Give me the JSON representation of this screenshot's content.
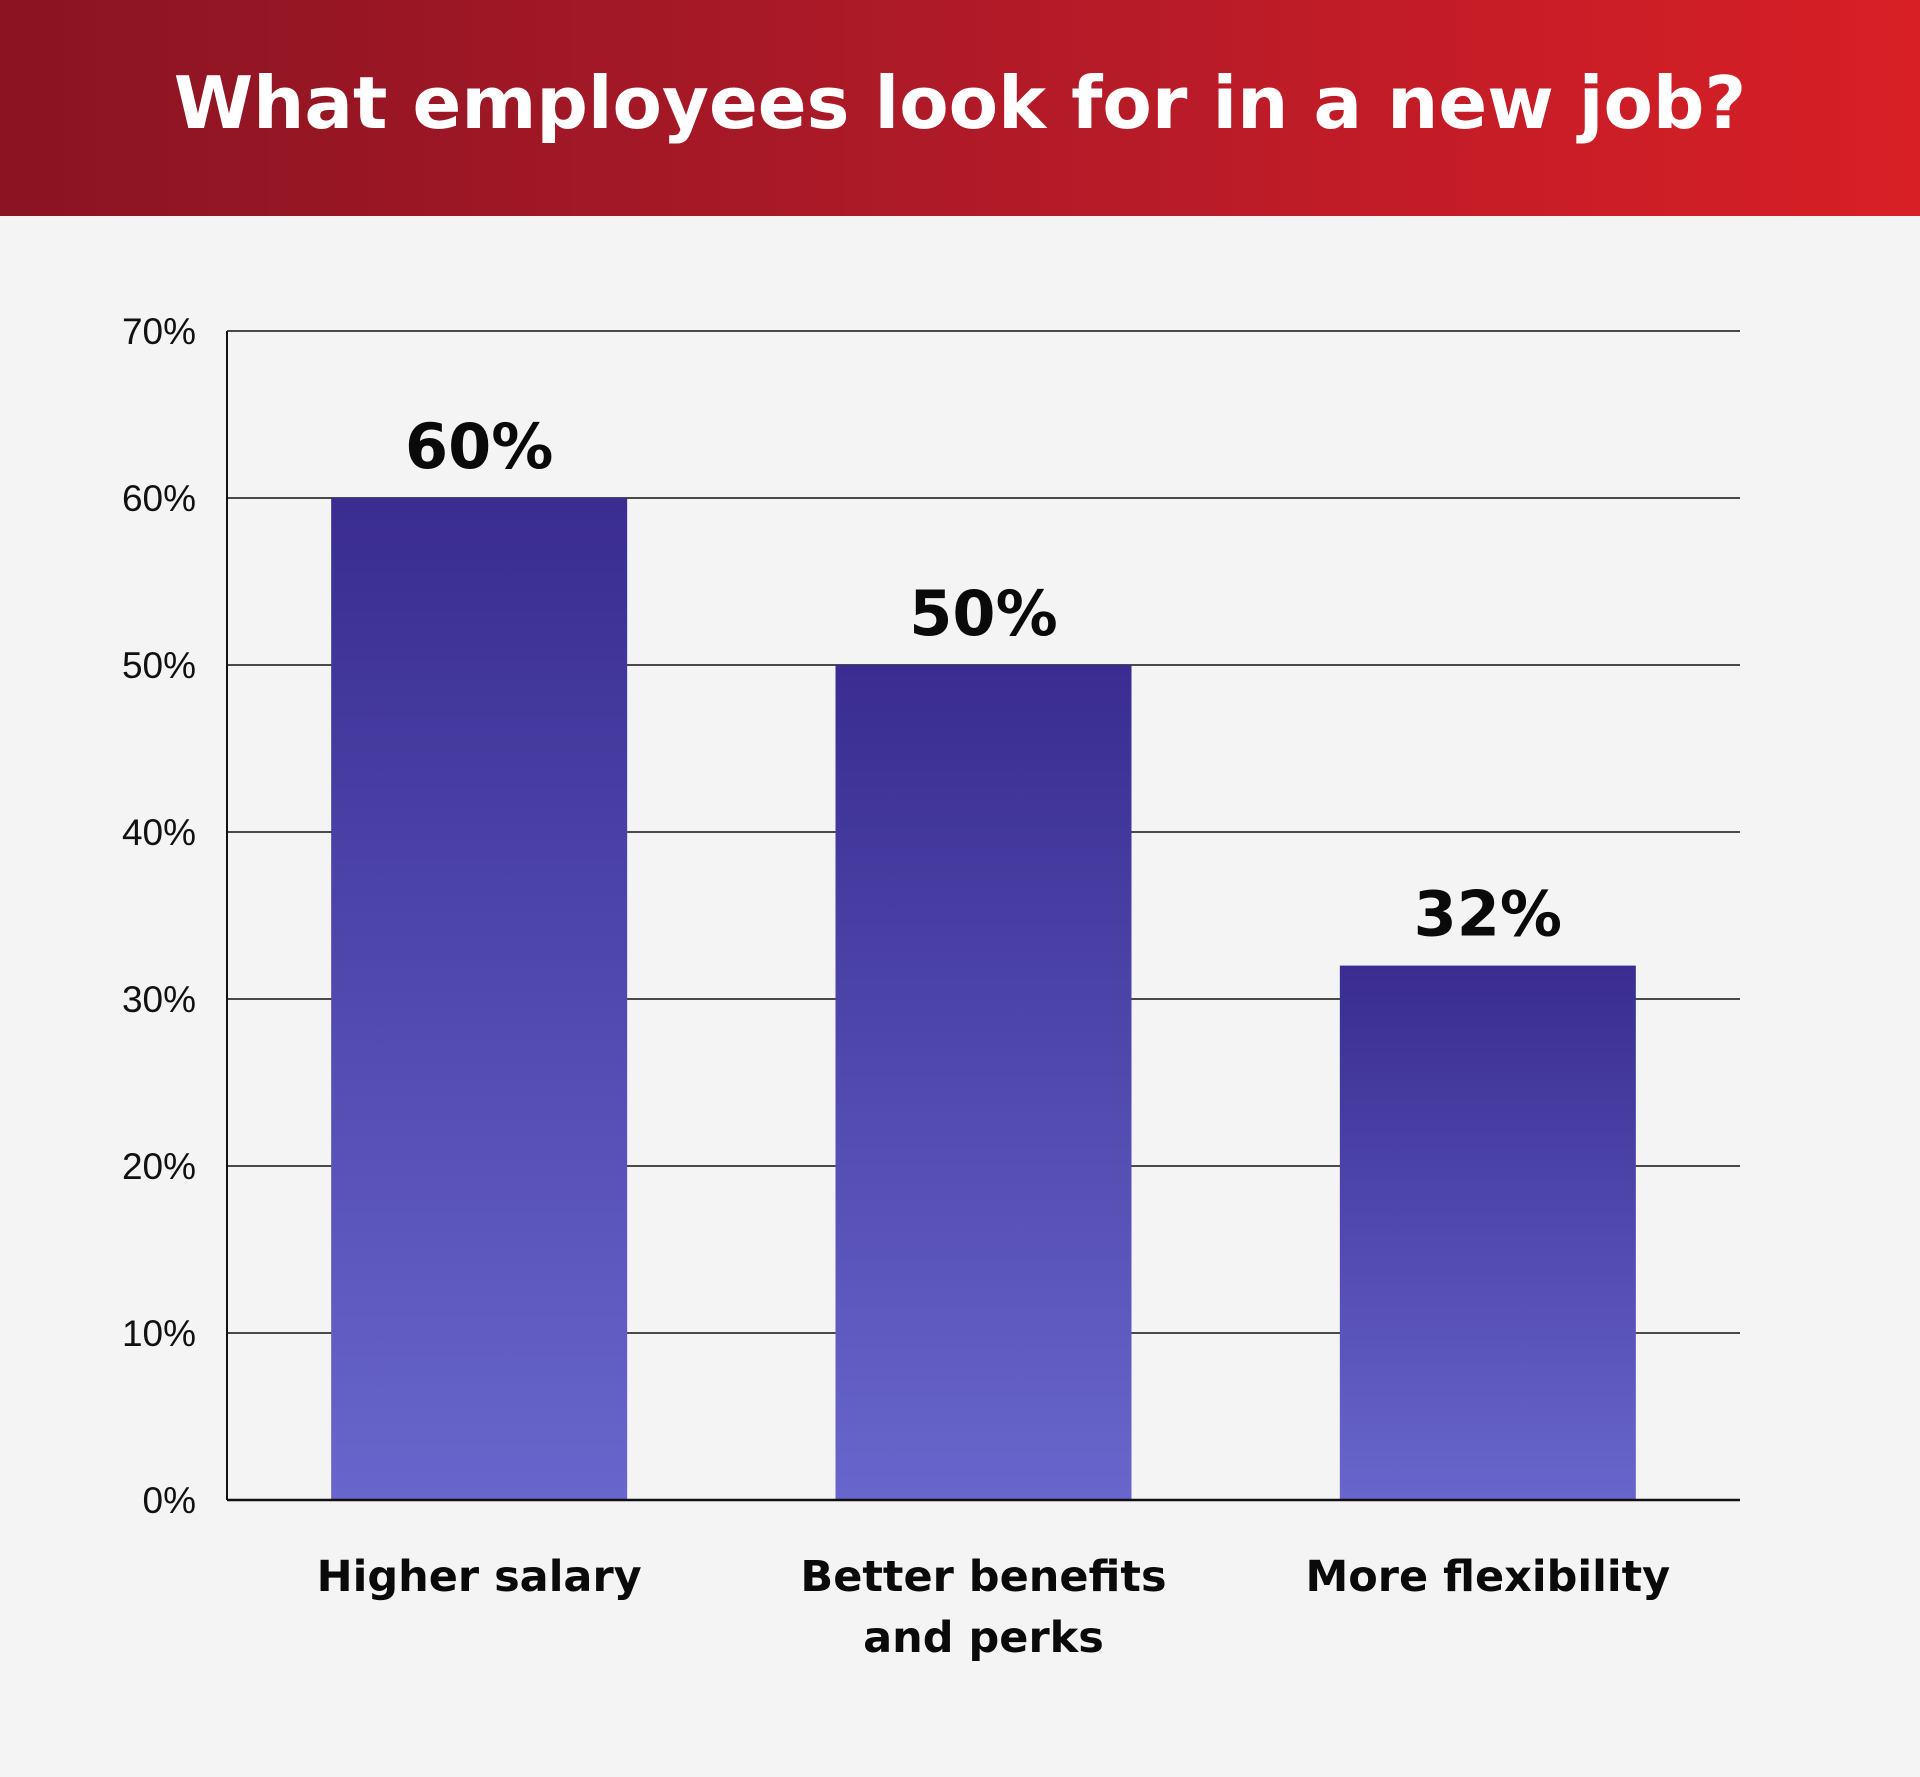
{
  "header": {
    "title": "What employees look for in a new job?"
  },
  "colors": {
    "header_start": "#8a1422",
    "header_end": "#d81f26",
    "bar_top": "#3a2c90",
    "bar_bottom": "#6866cc",
    "background": "#f4f4f4"
  },
  "chart_data": {
    "type": "bar",
    "title": "What employees look for in a new job?",
    "categories": [
      [
        "Higher salary"
      ],
      [
        "Better benefits",
        "and perks"
      ],
      [
        "More flexibility"
      ]
    ],
    "values": [
      60,
      50,
      32
    ],
    "value_labels": [
      "60%",
      "50%",
      "32%"
    ],
    "ylim": [
      0,
      70
    ],
    "yticks": [
      0,
      10,
      20,
      30,
      40,
      50,
      60,
      70
    ],
    "ytick_labels": [
      "0%",
      "10%",
      "20%",
      "30%",
      "40%",
      "50%",
      "60%",
      "70%"
    ],
    "grid": true,
    "legend": "none"
  }
}
